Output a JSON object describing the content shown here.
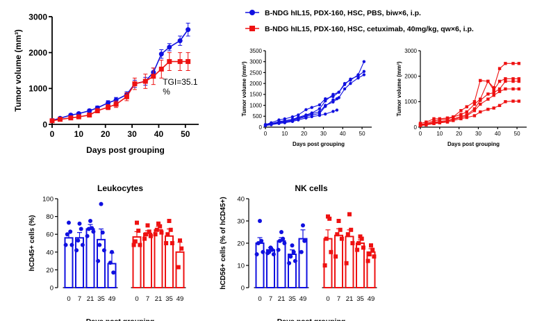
{
  "colors": {
    "pbs": "#1010e0",
    "cetuximab": "#ee1111",
    "axis": "#000000"
  },
  "legend": {
    "placement": "top",
    "items": [
      {
        "label": "B-NDG hIL15, PDX-160, HSC, PBS, biw×6, i.p.",
        "marker": "circle",
        "color": "#1010e0"
      },
      {
        "label": "B-NDG hIL15, PDX-160, HSC, cetuximab, 40mg/kg, qw×6, i.p.",
        "marker": "square",
        "color": "#ee1111"
      }
    ]
  },
  "chart_data": [
    {
      "id": "mean-growth",
      "type": "line",
      "xlabel": "Days post grouping",
      "ylabel": "Tumor volume (mm³)",
      "xlim": [
        0,
        55
      ],
      "ylim": [
        0,
        3000
      ],
      "xticks": [
        0,
        10,
        20,
        30,
        40,
        50
      ],
      "yticks": [
        0,
        1000,
        2000,
        3000
      ],
      "annotation": {
        "line1": "TGI=35.1",
        "line2": "%"
      },
      "series": [
        {
          "group": "PBS",
          "marker": "circle",
          "x": [
            0,
            3,
            7,
            10,
            14,
            17,
            21,
            24,
            28,
            31,
            35,
            38,
            41,
            44,
            48,
            51
          ],
          "y": [
            110,
            170,
            260,
            300,
            380,
            460,
            600,
            680,
            830,
            1130,
            1200,
            1450,
            1960,
            2150,
            2330,
            2640
          ],
          "err": [
            20,
            20,
            30,
            35,
            40,
            50,
            60,
            70,
            80,
            100,
            110,
            120,
            120,
            100,
            130,
            180
          ]
        },
        {
          "group": "cetuximab",
          "marker": "square",
          "x": [
            0,
            3,
            7,
            10,
            14,
            17,
            21,
            24,
            28,
            31,
            35,
            38,
            41,
            44,
            48,
            51
          ],
          "y": [
            100,
            140,
            180,
            210,
            260,
            380,
            480,
            560,
            770,
            1130,
            1200,
            1340,
            1540,
            1750,
            1750,
            1750
          ],
          "err": [
            20,
            20,
            30,
            30,
            40,
            60,
            70,
            90,
            110,
            160,
            200,
            230,
            250,
            250,
            250,
            250
          ]
        }
      ]
    },
    {
      "id": "individual-pbs",
      "type": "line",
      "xlabel": "Days post grouping",
      "ylabel": "Tumor volume (mm³)",
      "xlim": [
        0,
        55
      ],
      "ylim": [
        0,
        3500
      ],
      "xticks": [
        0,
        10,
        20,
        30,
        40,
        50
      ],
      "yticks": [
        0,
        500,
        1000,
        1500,
        2000,
        2500,
        3000,
        3500
      ],
      "series": [
        {
          "marker": "circle",
          "x": [
            0,
            3,
            7,
            10,
            14,
            17,
            21,
            24,
            28,
            31,
            35,
            38,
            41,
            44,
            48,
            51
          ],
          "y": [
            120,
            200,
            330,
            380,
            470,
            560,
            800,
            900,
            1020,
            1300,
            1400,
            1600,
            2000,
            2150,
            2400,
            3000
          ]
        },
        {
          "marker": "circle",
          "x": [
            0,
            3,
            7,
            10,
            14,
            17,
            21,
            24,
            28,
            31,
            35,
            38,
            41,
            44,
            48,
            51
          ],
          "y": [
            100,
            160,
            250,
            300,
            360,
            450,
            560,
            650,
            840,
            1200,
            1500,
            1600,
            1950,
            2200,
            2350,
            2550
          ]
        },
        {
          "marker": "circle",
          "x": [
            0,
            3,
            7,
            10,
            14,
            17,
            21,
            24,
            28,
            31,
            35,
            38,
            41,
            44,
            48,
            51
          ],
          "y": [
            90,
            150,
            220,
            260,
            320,
            420,
            520,
            620,
            700,
            1000,
            1150,
            1350,
            1750,
            2000,
            2250,
            2400
          ]
        },
        {
          "marker": "circle",
          "x": [
            0,
            3,
            7,
            10,
            14,
            17,
            21,
            24,
            28,
            31,
            35,
            37
          ],
          "y": [
            80,
            130,
            200,
            240,
            300,
            380,
            480,
            560,
            620,
            950,
            1250,
            1300
          ]
        },
        {
          "marker": "circle",
          "x": [
            0,
            3,
            7,
            10,
            14,
            17,
            21,
            24,
            28,
            31,
            35,
            37
          ],
          "y": [
            70,
            110,
            170,
            200,
            260,
            330,
            420,
            480,
            540,
            600,
            720,
            780
          ]
        }
      ]
    },
    {
      "id": "individual-cetuximab",
      "type": "line",
      "xlabel": "Days post grouping",
      "ylabel": "Tumor volume (mm³)",
      "xlim": [
        0,
        55
      ],
      "ylim": [
        0,
        3000
      ],
      "xticks": [
        0,
        10,
        20,
        30,
        40,
        50
      ],
      "yticks": [
        0,
        1000,
        2000,
        3000
      ],
      "series": [
        {
          "marker": "square",
          "x": [
            0,
            3,
            7,
            10,
            14,
            17,
            21,
            24,
            28,
            31,
            35,
            38,
            41,
            44,
            48,
            51
          ],
          "y": [
            150,
            200,
            330,
            330,
            360,
            400,
            650,
            800,
            1000,
            1830,
            1800,
            1450,
            1800,
            1900,
            1900,
            1900
          ]
        },
        {
          "marker": "square",
          "x": [
            0,
            3,
            7,
            10,
            14,
            17,
            21,
            24,
            28,
            31,
            35,
            38,
            41,
            44,
            48,
            51
          ],
          "y": [
            100,
            150,
            250,
            280,
            320,
            400,
            500,
            600,
            900,
            1100,
            1800,
            1550,
            2300,
            2500,
            2500,
            2500
          ]
        },
        {
          "marker": "square",
          "x": [
            0,
            3,
            7,
            10,
            14,
            17,
            21,
            24,
            28,
            31,
            35,
            38,
            41,
            44,
            48,
            51
          ],
          "y": [
            80,
            120,
            200,
            220,
            260,
            320,
            420,
            480,
            720,
            1050,
            1300,
            1350,
            1500,
            1800,
            1800,
            1800
          ]
        },
        {
          "marker": "square",
          "x": [
            0,
            3,
            7,
            10,
            14,
            17,
            21,
            24,
            28,
            31,
            35,
            38,
            41,
            44,
            48,
            51
          ],
          "y": [
            70,
            100,
            160,
            190,
            240,
            300,
            380,
            440,
            650,
            900,
            1100,
            1250,
            1400,
            1500,
            1500,
            1500
          ]
        },
        {
          "marker": "square",
          "x": [
            0,
            3,
            7,
            10,
            14,
            17,
            21,
            24,
            28,
            31,
            35,
            38,
            41,
            44,
            48,
            51
          ],
          "y": [
            60,
            90,
            140,
            170,
            200,
            260,
            330,
            380,
            450,
            600,
            700,
            750,
            850,
            1000,
            1020,
            1020
          ]
        }
      ]
    },
    {
      "id": "leukocytes",
      "type": "bar",
      "title": "Leukocytes",
      "xlabel": "Days post grouping",
      "ylabel": "hCD45+ cells (%)",
      "ylim": [
        0,
        100
      ],
      "yticks": [
        0,
        20,
        40,
        60,
        80,
        100
      ],
      "groups": [
        {
          "group": "PBS",
          "marker": "circle",
          "categories": [
            "0",
            "7",
            "21",
            "35",
            "49"
          ],
          "values": [
            56,
            56,
            66,
            54,
            27
          ],
          "err": [
            5,
            6,
            5,
            12,
            12
          ],
          "points": [
            [
              73,
              63,
              60,
              48,
              48
            ],
            [
              72,
              66,
              53,
              48,
              42
            ],
            [
              75,
              67,
              66,
              63,
              58
            ],
            [
              94,
              62,
              48,
              42,
              30
            ],
            [
              40,
              17,
              28
            ]
          ]
        },
        {
          "group": "cetuximab",
          "marker": "square",
          "categories": [
            "0",
            "7",
            "21",
            "35",
            "49"
          ],
          "values": [
            57,
            61,
            65,
            58,
            40
          ],
          "err": [
            6,
            3,
            4,
            8,
            11
          ],
          "points": [
            [
              73,
              64,
              52,
              48,
              48
            ],
            [
              70,
              63,
              60,
              58,
              55
            ],
            [
              72,
              69,
              65,
              62,
              60
            ],
            [
              75,
              65,
              60,
              50,
              50
            ],
            [
              53,
              44,
              23
            ]
          ]
        }
      ]
    },
    {
      "id": "nk-cells",
      "type": "bar",
      "title": "NK cells",
      "xlabel": "Days post grouping",
      "ylabel": "hCD56+ cells (% of hCD45+)",
      "ylim": [
        0,
        40
      ],
      "yticks": [
        0,
        10,
        20,
        30,
        40
      ],
      "groups": [
        {
          "group": "PBS",
          "marker": "circle",
          "categories": [
            "0",
            "7",
            "21",
            "35",
            "49"
          ],
          "values": [
            20,
            17,
            21,
            15,
            22
          ],
          "err": [
            2.5,
            1,
            1.5,
            2,
            4
          ],
          "points": [
            [
              30,
              21,
              20,
              16,
              15
            ],
            [
              18,
              17,
              16,
              15,
              15.5
            ],
            [
              25,
              22,
              21,
              20,
              17
            ],
            [
              19,
              16,
              14,
              12,
              11
            ],
            [
              28,
              21,
              16
            ]
          ]
        },
        {
          "group": "cetuximab",
          "marker": "square",
          "categories": [
            "0",
            "7",
            "21",
            "35",
            "49"
          ],
          "values": [
            22,
            23.5,
            23,
            20,
            16
          ],
          "err": [
            4,
            3,
            3,
            1.5,
            1.5
          ],
          "points": [
            [
              32,
              31,
              22,
              16,
              10
            ],
            [
              30,
              26,
              24,
              22,
              14
            ],
            [
              33,
              26,
              24,
              20,
              11
            ],
            [
              23,
              22,
              20,
              18,
              17
            ],
            [
              19,
              17,
              15,
              14,
              12
            ]
          ]
        }
      ]
    }
  ]
}
